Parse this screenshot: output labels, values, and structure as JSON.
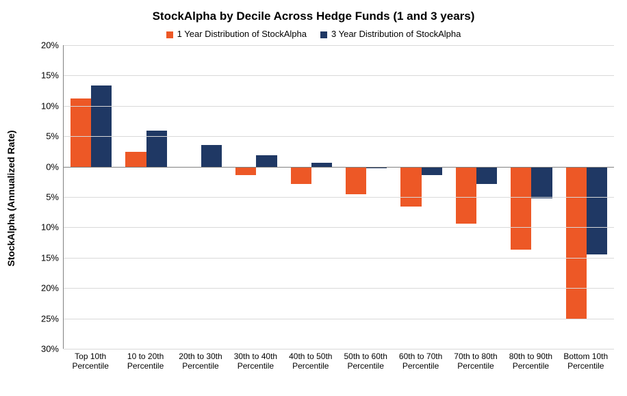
{
  "chart": {
    "type": "bar",
    "title": "StockAlpha by Decile Across Hedge Funds (1 and 3 years)",
    "title_fontsize": 17,
    "ylabel": "StockAlpha (Annualized Rate)",
    "label_fontsize": 14,
    "background_color": "#ffffff",
    "grid_color": "#d9d9d9",
    "axis_color": "#808080",
    "ylim": [
      -30,
      20
    ],
    "ytick_step": 5,
    "ytick_format": "percent",
    "categories": [
      "Top 10th Percentile",
      "10 to 20th Percentile",
      "20th to 30th Percentile",
      "30th to 40th Percentile",
      "40th to 50th Percentile",
      "50th to 60th Percentile",
      "60th to 70th Percentile",
      "70th to 80th Percentile",
      "80th to 90th Percentile",
      "Bottom 10th Percentile"
    ],
    "series": [
      {
        "name": "1 Year Distribution of StockAlpha",
        "color": "#ed5826",
        "values": [
          11.2,
          2.4,
          0.0,
          -1.4,
          -2.9,
          -4.5,
          -6.6,
          -9.4,
          -13.7,
          -25.2
        ]
      },
      {
        "name": "3 Year Distribution of StockAlpha",
        "color": "#1f3864",
        "values": [
          13.4,
          5.9,
          3.6,
          1.9,
          0.6,
          -0.3,
          -1.4,
          -2.9,
          -5.2,
          -14.5
        ]
      }
    ],
    "bar_gap_ratio": 0.25,
    "tick_font_size": 13,
    "xlabel_font_size": 12
  }
}
